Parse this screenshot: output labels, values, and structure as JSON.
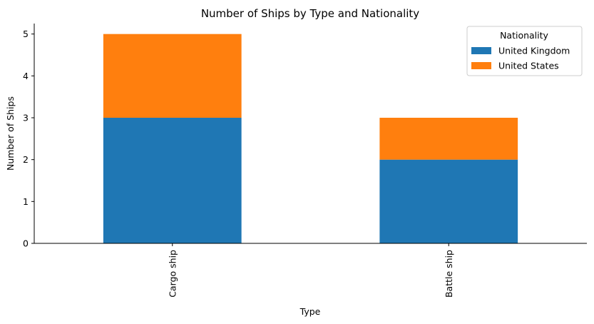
{
  "chart_data": {
    "type": "bar",
    "stacked": true,
    "title": "Number of Ships by Type and Nationality",
    "xlabel": "Type",
    "ylabel": "Number of Ships",
    "categories": [
      "Cargo ship",
      "Battle ship"
    ],
    "series": [
      {
        "name": "United Kingdom",
        "values": [
          3,
          2
        ],
        "color": "#1f77b4"
      },
      {
        "name": "United States",
        "values": [
          2,
          1
        ],
        "color": "#ff7f0e"
      }
    ],
    "ylim": [
      0,
      5.25
    ],
    "yticks": [
      0,
      1,
      2,
      3,
      4,
      5
    ],
    "legend": {
      "title": "Nationality",
      "placement": "top-right"
    }
  }
}
